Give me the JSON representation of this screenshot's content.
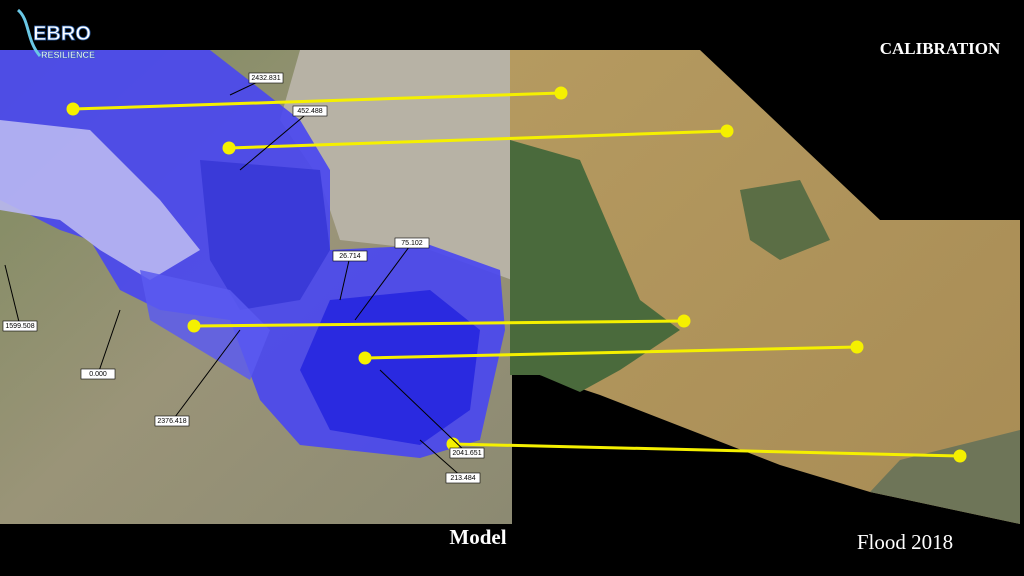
{
  "logo": {
    "name": "EBRO",
    "tagline": "RESILIENCE"
  },
  "header": {
    "title": "CALIBRATION"
  },
  "model_panel": {
    "caption": "Model",
    "section_labels": [
      "2432.831",
      "452.488",
      "26.714",
      "75.102",
      "1599.508",
      "0.000",
      "2376.418",
      "2041.651",
      "213.484"
    ]
  },
  "observation_panel": {
    "caption": "Flood 2018"
  }
}
